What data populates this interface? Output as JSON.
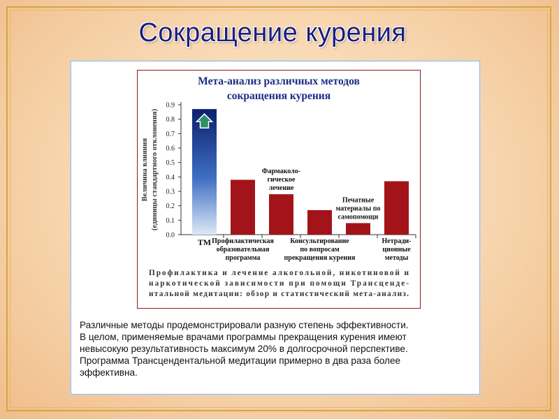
{
  "slide": {
    "title": "Сокращение курения",
    "caption_lines": [
      "Различные методы продемонстрировали разную степень эффективности.",
      "В целом, применяемые врачами программы прекращения курения имеют",
      "невысокую результативность  максимум 20% в долгосрочной перспективе.",
      "Программа Трансцендентальной медитации примерно в два раза более",
      "эффективна."
    ]
  },
  "colors": {
    "tm_bar_top": "#0b1f6e",
    "tm_bar_bottom": "#dce9f7",
    "other_bars": "#a3141a",
    "arrow": "#2f8f6a",
    "chart_title": "#1b2c86",
    "slide_title": "#1b1f7a"
  },
  "icons": {
    "tm_bar_marker": "up-arrow-icon"
  },
  "chart_data": {
    "type": "bar",
    "title": [
      "Мета-анализ различных методов",
      "сокращения курения"
    ],
    "ylabel": [
      "Величина влияния",
      "(единицы стандартного отклонения)"
    ],
    "ylim": [
      0,
      0.9
    ],
    "yticks": [
      "0.0",
      "0.1",
      "0.2",
      "0.3",
      "0.4",
      "0.5",
      "0.6",
      "0.7",
      "0.8",
      "0.9"
    ],
    "categories": [
      "ТМ",
      "Профилактическая образовательная программа",
      "Фармакологическое лечение",
      "Консультирование по вопросам прекращения курения",
      "Печатные материалы по самопомощи",
      "Нетрадиционные методы"
    ],
    "values": [
      0.87,
      0.38,
      0.28,
      0.17,
      0.08,
      0.37
    ],
    "labels": [
      {
        "lines": [
          "ТМ"
        ],
        "pos": "below"
      },
      {
        "lines": [
          "Профилактическая",
          "образовательная",
          "программа"
        ],
        "pos": "below"
      },
      {
        "lines": [
          "Фармаколо-",
          "гическое",
          "лечение"
        ],
        "pos": "above"
      },
      {
        "lines": [
          "Консультирование",
          "по вопросам",
          "прекращения курения"
        ],
        "pos": "below"
      },
      {
        "lines": [
          "Печатные",
          "материалы по",
          "самопомощи"
        ],
        "pos": "above"
      },
      {
        "lines": [
          "Нетради-",
          "ционные",
          "методы"
        ],
        "pos": "below"
      }
    ],
    "footnote": [
      "Профилактика и лечение алкогольной, никотиновой и",
      "наркотической зависимости  при помощи Трансценде-",
      "итальной медитации: обзор и статистический мета-анализ."
    ]
  }
}
